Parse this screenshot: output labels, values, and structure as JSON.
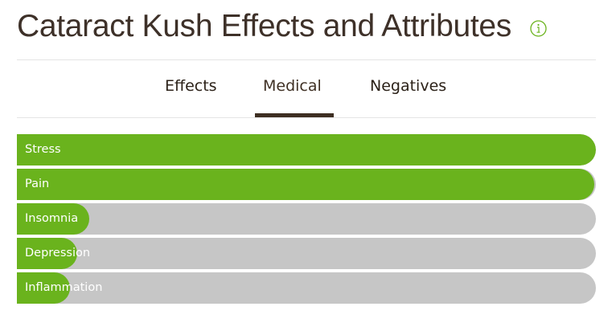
{
  "header": {
    "title": "Cataract Kush Effects and Attributes",
    "info_icon": "info-circle-icon",
    "info_color": "#6ab31d"
  },
  "tabs": [
    {
      "label": "Effects",
      "active": false
    },
    {
      "label": "Medical",
      "active": true
    },
    {
      "label": "Negatives",
      "active": false
    }
  ],
  "colors": {
    "bar_fill": "#6ab31d",
    "bar_track": "#c6c6c6",
    "title": "#3e3129",
    "tab_underline": "#3d2e22"
  },
  "chart_data": {
    "type": "bar",
    "orientation": "horizontal",
    "title": "Cataract Kush Effects and Attributes — Medical",
    "xlabel": "",
    "ylabel": "",
    "xlim": [
      0,
      100
    ],
    "grid": false,
    "legend": "none",
    "categories": [
      "Stress",
      "Pain",
      "Insomnia",
      "Depression",
      "Inflammation"
    ],
    "values": [
      100,
      99.7,
      12.5,
      10.4,
      9.2
    ]
  }
}
